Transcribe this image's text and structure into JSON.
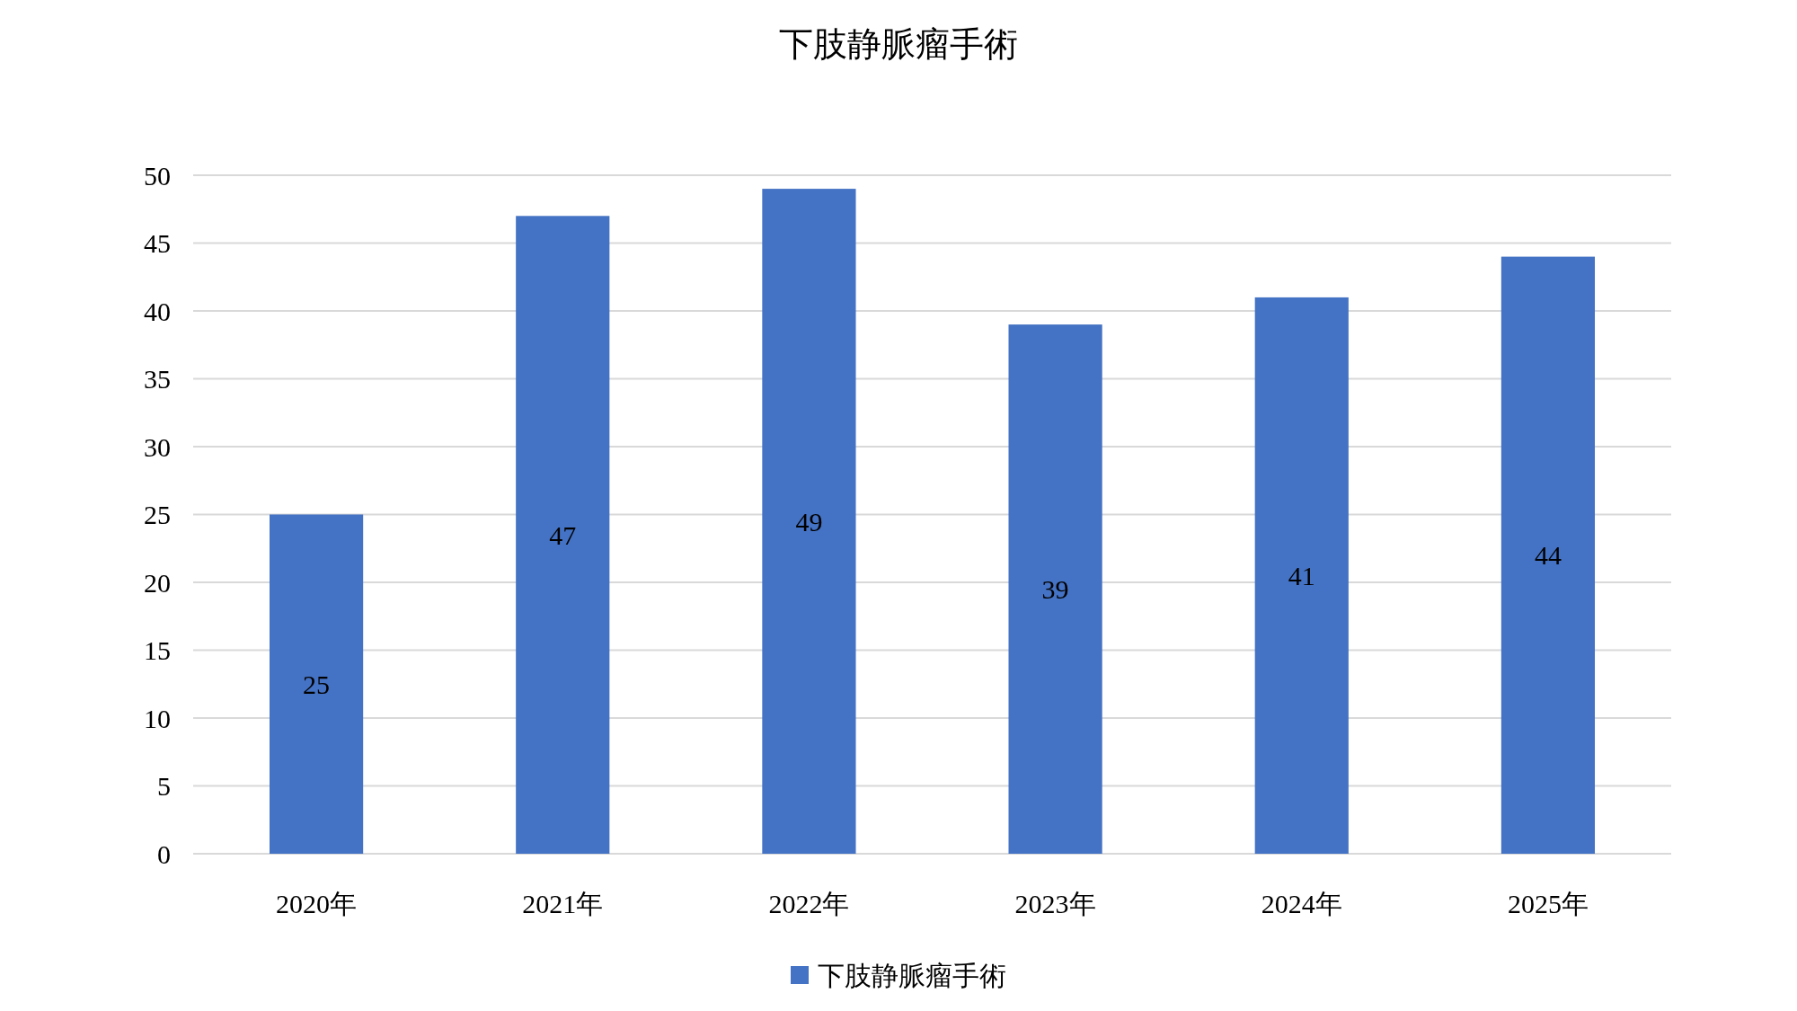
{
  "chart_data": {
    "type": "bar",
    "title": "下肢静脈瘤手術",
    "categories": [
      "2020年",
      "2021年",
      "2022年",
      "2023年",
      "2024年",
      "2025年"
    ],
    "series": [
      {
        "name": "下肢静脈瘤手術",
        "color": "#4472c4",
        "values": [
          25,
          47,
          49,
          39,
          41,
          44
        ]
      }
    ],
    "ylim": [
      0,
      50
    ],
    "yticks": [
      0,
      5,
      10,
      15,
      20,
      25,
      30,
      35,
      40,
      45,
      50
    ],
    "grid": "y",
    "legend": "bottom",
    "data_labels": true
  }
}
